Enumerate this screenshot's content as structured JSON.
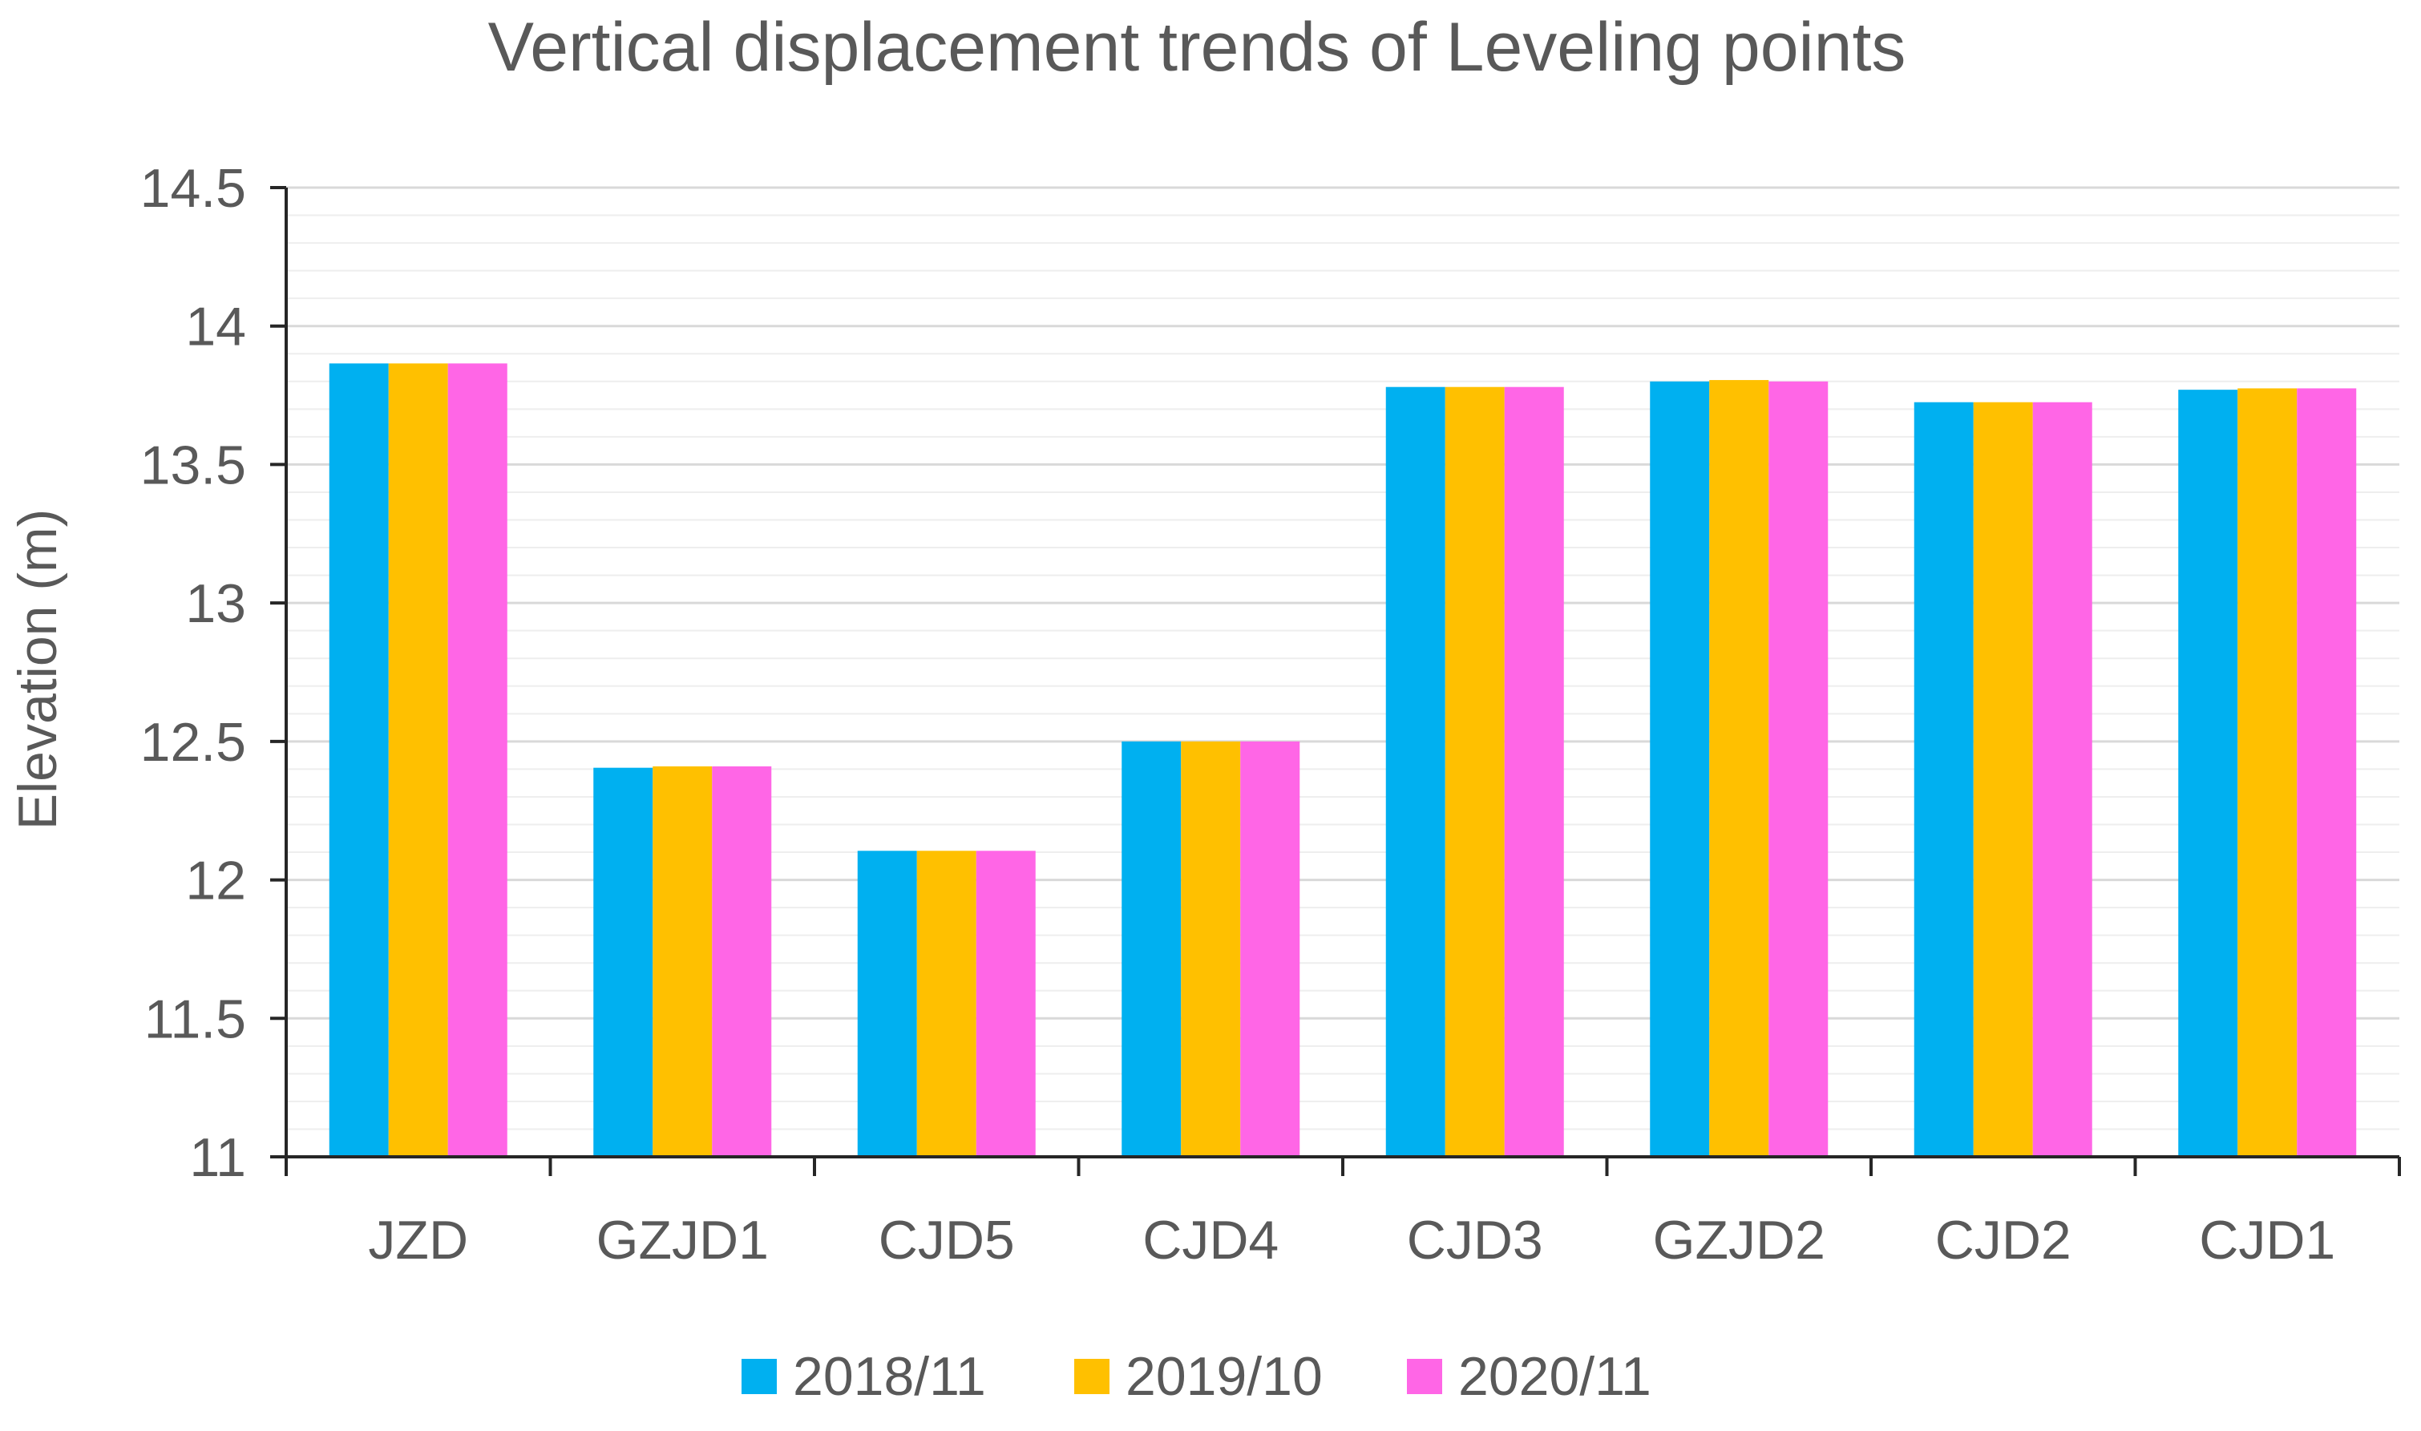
{
  "chart_data": {
    "type": "bar",
    "title": "Vertical displacement trends of Leveling points",
    "xlabel": "",
    "ylabel": "Elevation (m)",
    "ylim": [
      11,
      14.5
    ],
    "yticks": [
      "11",
      "11.5",
      "12",
      "12.5",
      "13",
      "13.5",
      "14",
      "14.5"
    ],
    "ytick_values": [
      11,
      11.5,
      12,
      12.5,
      13,
      13.5,
      14,
      14.5
    ],
    "minor_grid_step": 0.1,
    "grid": true,
    "legend_position": "bottom",
    "categories": [
      "JZD",
      "GZJD1",
      "CJD5",
      "CJD4",
      "CJD3",
      "GZJD2",
      "CJD2",
      "CJD1"
    ],
    "series": [
      {
        "name": "2018/11",
        "color": "#00B0F0",
        "values": [
          13.865,
          12.405,
          12.105,
          12.5,
          13.78,
          13.8,
          13.725,
          13.77
        ]
      },
      {
        "name": "2019/10",
        "color": "#FFC000",
        "values": [
          13.865,
          12.41,
          12.105,
          12.5,
          13.78,
          13.805,
          13.725,
          13.775
        ]
      },
      {
        "name": "2020/11",
        "color": "#FF66E6",
        "values": [
          13.865,
          12.41,
          12.105,
          12.5,
          13.78,
          13.8,
          13.725,
          13.775
        ]
      }
    ]
  }
}
